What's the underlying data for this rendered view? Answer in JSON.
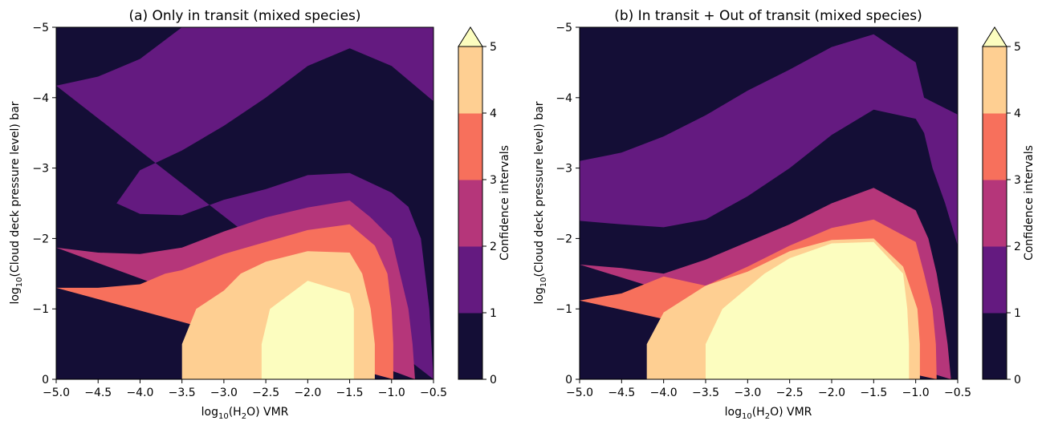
{
  "colors": {
    "levels": [
      "#140e36",
      "#641a80",
      "#b5367a",
      "#f7705c",
      "#fecf92",
      "#fcfdbf"
    ],
    "extend_top": "#fcfdbf",
    "axis": "#000000"
  },
  "chart_data": [
    {
      "type": "contourf",
      "title": "(a) Only in transit (mixed species)",
      "xlabel": {
        "prefix": "log",
        "sub": "10",
        "mid": "(H",
        "sub2": "2",
        "suffix": "O) VMR"
      },
      "ylabel": {
        "prefix": "log",
        "sub": "10",
        "suffix": "(Cloud deck pressure level) bar"
      },
      "xlim": [
        -5.0,
        -0.5
      ],
      "ylim": [
        0,
        -5
      ],
      "x_ticks": [
        "−5.0",
        "−4.5",
        "−4.0",
        "−3.5",
        "−3.0",
        "−2.5",
        "−2.0",
        "−1.5",
        "−1.0",
        "−0.5"
      ],
      "y_ticks": [
        "−5",
        "−4",
        "−3",
        "−2",
        "−1",
        "0"
      ],
      "colorbar": {
        "label": "Confidence intervals",
        "ticks": [
          "0",
          "1",
          "2",
          "3",
          "4",
          "5"
        ],
        "extend": "max"
      },
      "contours": [
        {
          "level": 1,
          "points": [
            [
              -5.0,
              -4.17
            ],
            [
              -4.5,
              -4.3
            ],
            [
              -4.0,
              -4.55
            ],
            [
              -3.5,
              -5.0
            ],
            [
              -0.5,
              -5.0
            ],
            [
              -0.5,
              -3.95
            ],
            [
              -1.0,
              -4.45
            ],
            [
              -1.5,
              -4.7
            ],
            [
              -2.0,
              -4.45
            ],
            [
              -2.5,
              -4.0
            ],
            [
              -3.0,
              -3.6
            ],
            [
              -3.5,
              -3.25
            ],
            [
              -4.0,
              -2.97
            ],
            [
              -4.28,
              -2.5
            ],
            [
              -4.0,
              -2.35
            ],
            [
              -3.5,
              -2.33
            ],
            [
              -3.0,
              -2.55
            ],
            [
              -2.5,
              -2.7
            ],
            [
              -2.0,
              -2.9
            ],
            [
              -1.5,
              -2.93
            ],
            [
              -1.0,
              -2.65
            ],
            [
              -0.8,
              -2.45
            ],
            [
              -0.65,
              -2.0
            ],
            [
              -0.55,
              -1.0
            ],
            [
              -0.5,
              0
            ]
          ]
        },
        {
          "level": 2,
          "points": [
            [
              -5.0,
              -1.87
            ],
            [
              -4.5,
              -1.8
            ],
            [
              -4.0,
              -1.78
            ],
            [
              -3.5,
              -1.87
            ],
            [
              -3.0,
              -2.1
            ],
            [
              -2.5,
              -2.3
            ],
            [
              -2.0,
              -2.44
            ],
            [
              -1.5,
              -2.54
            ],
            [
              -1.25,
              -2.3
            ],
            [
              -1.0,
              -2.0
            ],
            [
              -0.9,
              -1.5
            ],
            [
              -0.8,
              -1.0
            ],
            [
              -0.75,
              -0.5
            ],
            [
              -0.72,
              0
            ]
          ]
        },
        {
          "level": 3,
          "points": [
            [
              -5.0,
              -1.3
            ],
            [
              -4.5,
              -1.3
            ],
            [
              -4.0,
              -1.35
            ],
            [
              -3.7,
              -1.5
            ],
            [
              -3.5,
              -1.55
            ],
            [
              -3.0,
              -1.78
            ],
            [
              -2.5,
              -1.95
            ],
            [
              -2.0,
              -2.12
            ],
            [
              -1.5,
              -2.2
            ],
            [
              -1.2,
              -1.9
            ],
            [
              -1.05,
              -1.5
            ],
            [
              -1.0,
              -1.0
            ],
            [
              -0.98,
              -0.5
            ],
            [
              -0.98,
              0
            ]
          ]
        },
        {
          "level": 4,
          "points": [
            [
              -3.5,
              0
            ],
            [
              -3.5,
              -0.5
            ],
            [
              -3.33,
              -1.0
            ],
            [
              -3.0,
              -1.26
            ],
            [
              -2.8,
              -1.5
            ],
            [
              -2.5,
              -1.67
            ],
            [
              -2.0,
              -1.82
            ],
            [
              -1.5,
              -1.8
            ],
            [
              -1.35,
              -1.5
            ],
            [
              -1.25,
              -1.0
            ],
            [
              -1.2,
              -0.5
            ],
            [
              -1.2,
              0
            ]
          ]
        },
        {
          "level": 5,
          "points": [
            [
              -2.55,
              0
            ],
            [
              -2.55,
              -0.5
            ],
            [
              -2.45,
              -1.0
            ],
            [
              -2.0,
              -1.4
            ],
            [
              -1.5,
              -1.22
            ],
            [
              -1.45,
              -1.0
            ],
            [
              -1.45,
              -0.5
            ],
            [
              -1.45,
              0
            ]
          ]
        }
      ]
    },
    {
      "type": "contourf",
      "title": "(b) In transit + Out of transit (mixed species)",
      "xlabel": {
        "prefix": "log",
        "sub": "10",
        "mid": "(H",
        "sub2": "2",
        "suffix": "O) VMR"
      },
      "ylabel": {
        "prefix": "log",
        "sub": "10",
        "suffix": "(Cloud deck pressure level) bar"
      },
      "xlim": [
        -5.0,
        -0.5
      ],
      "ylim": [
        0,
        -5
      ],
      "x_ticks": [
        "−5.0",
        "−4.5",
        "−4.0",
        "−3.5",
        "−3.0",
        "−2.5",
        "−2.0",
        "−1.5",
        "−1.0",
        "−0.5"
      ],
      "y_ticks": [
        "−5",
        "−4",
        "−3",
        "−2",
        "−1",
        "0"
      ],
      "colorbar": {
        "label": "Confidence intervals",
        "ticks": [
          "0",
          "1",
          "2",
          "3",
          "4",
          "5"
        ],
        "extend": "max"
      },
      "contours": [
        {
          "level": 1,
          "points": [
            [
              -5.0,
              -3.1
            ],
            [
              -4.5,
              -3.22
            ],
            [
              -4.0,
              -3.45
            ],
            [
              -3.5,
              -3.75
            ],
            [
              -3.0,
              -4.1
            ],
            [
              -2.5,
              -4.4
            ],
            [
              -2.0,
              -4.72
            ],
            [
              -1.5,
              -4.9
            ],
            [
              -1.0,
              -4.5
            ],
            [
              -0.9,
              -4.0
            ],
            [
              -0.5,
              -3.76
            ],
            [
              -0.5,
              -1.9
            ],
            [
              -0.65,
              -2.5
            ],
            [
              -0.8,
              -3.0
            ],
            [
              -0.9,
              -3.5
            ],
            [
              -1.0,
              -3.7
            ],
            [
              -1.5,
              -3.83
            ],
            [
              -2.0,
              -3.47
            ],
            [
              -2.5,
              -3.0
            ],
            [
              -3.0,
              -2.6
            ],
            [
              -3.5,
              -2.27
            ],
            [
              -4.0,
              -2.16
            ],
            [
              -4.5,
              -2.2
            ],
            [
              -5.0,
              -2.25
            ]
          ]
        },
        {
          "level": 2,
          "points": [
            [
              -5.0,
              -1.63
            ],
            [
              -4.5,
              -1.58
            ],
            [
              -4.0,
              -1.5
            ],
            [
              -3.5,
              -1.7
            ],
            [
              -3.0,
              -1.95
            ],
            [
              -2.5,
              -2.2
            ],
            [
              -2.0,
              -2.5
            ],
            [
              -1.5,
              -2.72
            ],
            [
              -1.0,
              -2.4
            ],
            [
              -0.85,
              -2.0
            ],
            [
              -0.75,
              -1.5
            ],
            [
              -0.68,
              -1.0
            ],
            [
              -0.62,
              -0.5
            ],
            [
              -0.58,
              0
            ]
          ]
        },
        {
          "level": 3,
          "points": [
            [
              -5.0,
              -1.12
            ],
            [
              -4.5,
              -1.22
            ],
            [
              -4.0,
              -1.46
            ],
            [
              -3.5,
              -1.33
            ],
            [
              -3.0,
              -1.6
            ],
            [
              -2.5,
              -1.9
            ],
            [
              -2.0,
              -2.15
            ],
            [
              -1.5,
              -2.27
            ],
            [
              -1.0,
              -1.95
            ],
            [
              -0.9,
              -1.5
            ],
            [
              -0.8,
              -1.0
            ],
            [
              -0.76,
              -0.5
            ],
            [
              -0.75,
              0
            ]
          ]
        },
        {
          "level": 4,
          "points": [
            [
              -4.2,
              0
            ],
            [
              -4.2,
              -0.5
            ],
            [
              -4.0,
              -0.95
            ],
            [
              -3.5,
              -1.33
            ],
            [
              -3.0,
              -1.53
            ],
            [
              -2.5,
              -1.82
            ],
            [
              -2.0,
              -1.98
            ],
            [
              -1.5,
              -2.0
            ],
            [
              -1.15,
              -1.6
            ],
            [
              -0.98,
              -1.0
            ],
            [
              -0.95,
              -0.5
            ],
            [
              -0.95,
              0
            ]
          ]
        },
        {
          "level": 5,
          "points": [
            [
              -3.5,
              0
            ],
            [
              -3.5,
              -0.5
            ],
            [
              -3.3,
              -1.0
            ],
            [
              -2.8,
              -1.5
            ],
            [
              -2.5,
              -1.72
            ],
            [
              -2.0,
              -1.93
            ],
            [
              -1.5,
              -1.95
            ],
            [
              -1.15,
              -1.5
            ],
            [
              -1.1,
              -1.0
            ],
            [
              -1.08,
              -0.5
            ],
            [
              -1.08,
              0
            ]
          ]
        }
      ]
    }
  ]
}
